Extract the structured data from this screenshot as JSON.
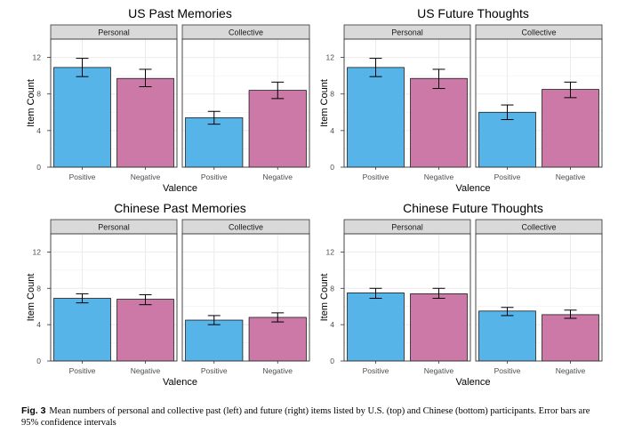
{
  "chart_data": [
    {
      "type": "bar",
      "title": "US Past Memories",
      "xlabel": "Valence",
      "ylabel": "Item Count",
      "ylim": [
        0,
        14
      ],
      "yticks": [
        0,
        4,
        8,
        12
      ],
      "facets": [
        {
          "label": "Personal",
          "categories": [
            "Positive",
            "Negative"
          ],
          "values": [
            10.9,
            9.7
          ],
          "ci": [
            [
              9.9,
              11.9
            ],
            [
              8.8,
              10.7
            ]
          ]
        },
        {
          "label": "Collective",
          "categories": [
            "Positive",
            "Negative"
          ],
          "values": [
            5.4,
            8.4
          ],
          "ci": [
            [
              4.7,
              6.1
            ],
            [
              7.5,
              9.3
            ]
          ]
        }
      ]
    },
    {
      "type": "bar",
      "title": "US Future Thoughts",
      "xlabel": "Valence",
      "ylabel": "Item Count",
      "ylim": [
        0,
        14
      ],
      "yticks": [
        0,
        4,
        8,
        12
      ],
      "facets": [
        {
          "label": "Personal",
          "categories": [
            "Positive",
            "Negative"
          ],
          "values": [
            10.9,
            9.7
          ],
          "ci": [
            [
              9.9,
              11.9
            ],
            [
              8.6,
              10.7
            ]
          ]
        },
        {
          "label": "Collective",
          "categories": [
            "Positive",
            "Negative"
          ],
          "values": [
            6.0,
            8.5
          ],
          "ci": [
            [
              5.2,
              6.8
            ],
            [
              7.6,
              9.3
            ]
          ]
        }
      ]
    },
    {
      "type": "bar",
      "title": "Chinese Past Memories",
      "xlabel": "Valence",
      "ylabel": "Item Count",
      "ylim": [
        0,
        14
      ],
      "yticks": [
        0,
        4,
        8,
        12
      ],
      "facets": [
        {
          "label": "Personal",
          "categories": [
            "Positive",
            "Negative"
          ],
          "values": [
            6.9,
            6.8
          ],
          "ci": [
            [
              6.4,
              7.4
            ],
            [
              6.2,
              7.3
            ]
          ]
        },
        {
          "label": "Collective",
          "categories": [
            "Positive",
            "Negative"
          ],
          "values": [
            4.5,
            4.8
          ],
          "ci": [
            [
              4.0,
              5.0
            ],
            [
              4.3,
              5.3
            ]
          ]
        }
      ]
    },
    {
      "type": "bar",
      "title": "Chinese Future Thoughts",
      "xlabel": "Valence",
      "ylabel": "Item Count",
      "ylim": [
        0,
        14
      ],
      "yticks": [
        0,
        4,
        8,
        12
      ],
      "facets": [
        {
          "label": "Personal",
          "categories": [
            "Positive",
            "Negative"
          ],
          "values": [
            7.5,
            7.4
          ],
          "ci": [
            [
              6.9,
              8.0
            ],
            [
              6.9,
              8.0
            ]
          ]
        },
        {
          "label": "Collective",
          "categories": [
            "Positive",
            "Negative"
          ],
          "values": [
            5.5,
            5.1
          ],
          "ci": [
            [
              5.0,
              5.9
            ],
            [
              4.7,
              5.6
            ]
          ]
        }
      ]
    }
  ],
  "colors": {
    "Positive": "#56b4e9",
    "Negative": "#cc79a7",
    "strip_bg": "#d9d9d9",
    "grid": "#ebebeb"
  },
  "caption": {
    "label": "Fig. 3",
    "text": "Mean numbers of personal and collective past (left) and future (right) items listed by U.S. (top) and Chinese (bottom) participants. Error bars are 95% confidence intervals"
  }
}
